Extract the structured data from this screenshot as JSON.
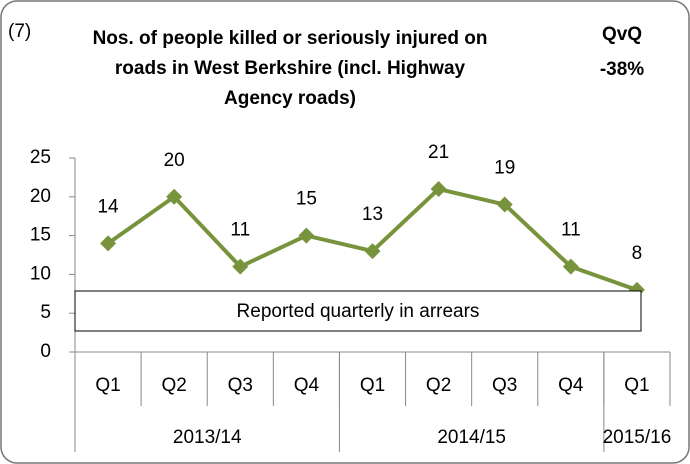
{
  "chart_data": {
    "type": "line",
    "title": "Nos. of people killed or seriously injured on roads in West Berkshire (incl. Highway Agency roads)",
    "annotations": [
      "(7)",
      "QvQ",
      "-38%",
      "Reported quarterly in arrears"
    ],
    "categories": [
      "Q1",
      "Q2",
      "Q3",
      "Q4",
      "Q1",
      "Q2",
      "Q3",
      "Q4",
      "Q1"
    ],
    "groups": [
      {
        "label": "2013/14",
        "count": 4
      },
      {
        "label": "2014/15",
        "count": 4
      },
      {
        "label": "2015/16",
        "count": 1
      }
    ],
    "values": [
      14,
      20,
      11,
      15,
      13,
      21,
      19,
      11,
      8
    ],
    "color": "#77933c",
    "ylim": [
      0,
      25
    ],
    "yticks": [
      0,
      5,
      10,
      15,
      20,
      25
    ],
    "grid": false
  }
}
